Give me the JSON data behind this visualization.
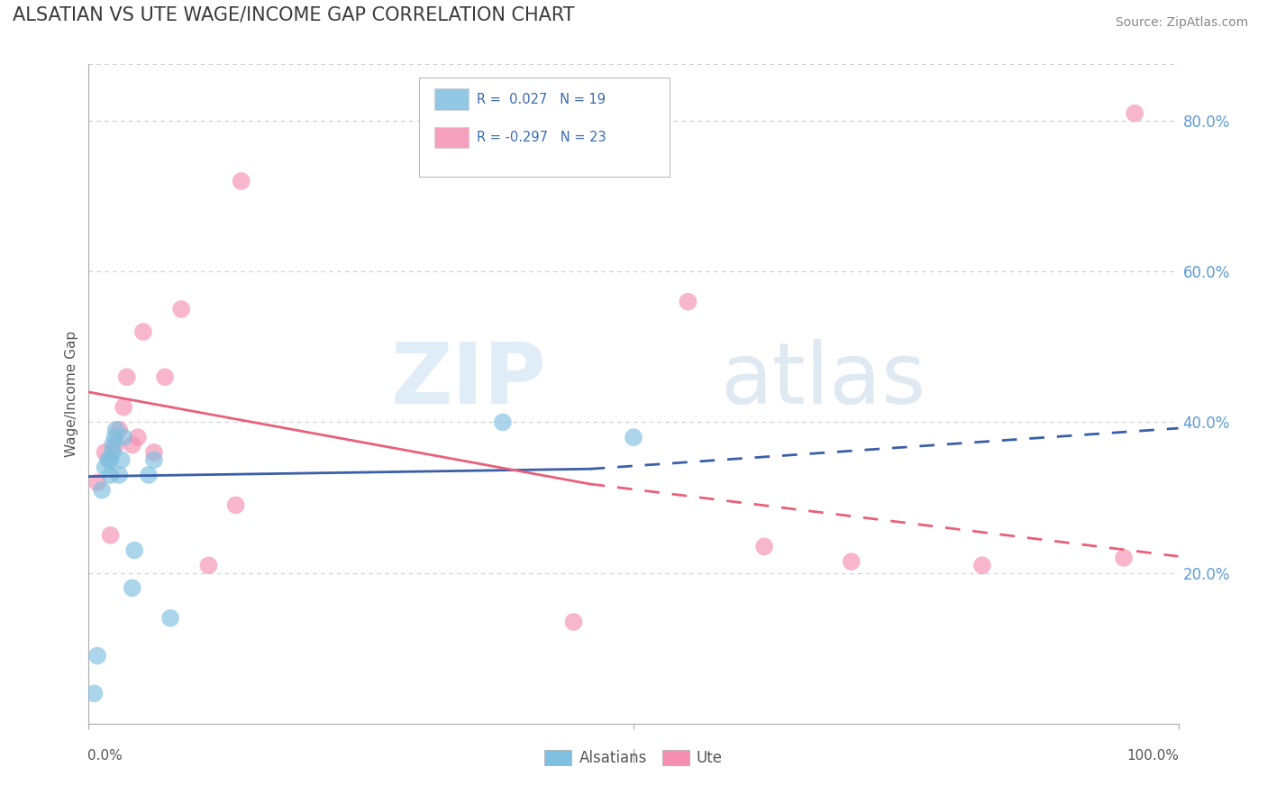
{
  "title": "ALSATIAN VS UTE WAGE/INCOME GAP CORRELATION CHART",
  "source": "Source: ZipAtlas.com",
  "ylabel": "Wage/Income Gap",
  "watermark": "ZIPatlas",
  "alsatian_x": [
    0.005,
    0.008,
    0.012,
    0.015,
    0.018,
    0.02,
    0.02,
    0.022,
    0.022,
    0.024,
    0.025,
    0.028,
    0.03,
    0.032,
    0.04,
    0.042,
    0.055,
    0.06,
    0.075,
    0.38,
    0.5
  ],
  "alsatian_y": [
    0.04,
    0.09,
    0.31,
    0.34,
    0.35,
    0.33,
    0.35,
    0.37,
    0.36,
    0.38,
    0.39,
    0.33,
    0.35,
    0.38,
    0.18,
    0.23,
    0.33,
    0.35,
    0.14,
    0.4,
    0.38
  ],
  "ute_x": [
    0.008,
    0.015,
    0.02,
    0.025,
    0.028,
    0.032,
    0.035,
    0.04,
    0.045,
    0.05,
    0.06,
    0.07,
    0.085,
    0.11,
    0.135,
    0.14,
    0.445,
    0.55,
    0.62,
    0.7,
    0.82,
    0.95,
    0.96
  ],
  "ute_y": [
    0.32,
    0.36,
    0.25,
    0.37,
    0.39,
    0.42,
    0.46,
    0.37,
    0.38,
    0.52,
    0.36,
    0.46,
    0.55,
    0.21,
    0.29,
    0.72,
    0.135,
    0.56,
    0.235,
    0.215,
    0.21,
    0.22,
    0.81
  ],
  "alsatian_color": "#7fbfdf",
  "ute_color": "#f48fb1",
  "alsatian_line_color": "#3a5fa8",
  "ute_line_color": "#e8607a",
  "grid_color": "#cccccc",
  "background": "#ffffff",
  "title_color": "#3a3a3a",
  "source_color": "#888888",
  "ylim": [
    0.0,
    0.875
  ],
  "xlim": [
    0.0,
    1.0
  ],
  "yticks": [
    0.2,
    0.4,
    0.6,
    0.8
  ],
  "ytick_labels": [
    "20.0%",
    "40.0%",
    "60.0%",
    "80.0%"
  ],
  "als_line_x0": 0.0,
  "als_line_x_split": 0.46,
  "als_line_x1": 1.0,
  "als_line_y0": 0.328,
  "als_line_y_split": 0.338,
  "als_line_y1": 0.392,
  "ute_line_x0": 0.0,
  "ute_line_x_split": 0.46,
  "ute_line_x1": 1.0,
  "ute_line_y0": 0.44,
  "ute_line_y_split": 0.318,
  "ute_line_y1": 0.222
}
